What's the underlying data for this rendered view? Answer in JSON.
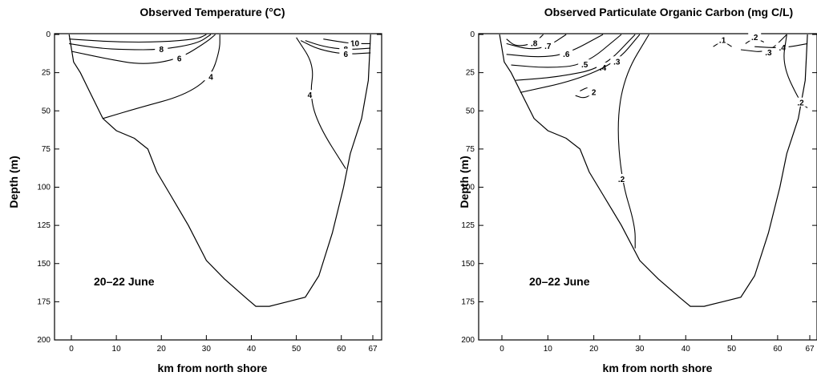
{
  "chart_data": [
    {
      "type": "contour",
      "title": "Observed Temperature (°C)",
      "xlabel": "km from north shore",
      "ylabel": "Depth (m)",
      "xlim": [
        -5,
        70
      ],
      "ylim": [
        200,
        0
      ],
      "x_ticks": [
        0,
        10,
        20,
        30,
        40,
        50,
        60,
        67
      ],
      "y_ticks": [
        0,
        25,
        50,
        75,
        100,
        125,
        150,
        175,
        200
      ],
      "annotation": "20–22 June",
      "basin_outline": [
        [
          -0.5,
          0
        ],
        [
          0.5,
          18
        ],
        [
          2,
          25
        ],
        [
          4,
          37
        ],
        [
          7,
          55
        ],
        [
          10,
          63
        ],
        [
          14,
          68
        ],
        [
          17,
          75
        ],
        [
          19,
          90
        ],
        [
          22,
          105
        ],
        [
          26,
          125
        ],
        [
          30,
          148
        ],
        [
          34,
          160
        ],
        [
          39,
          173
        ],
        [
          41,
          178
        ],
        [
          44,
          178
        ],
        [
          48,
          175
        ],
        [
          52,
          172
        ],
        [
          55,
          158
        ],
        [
          58,
          130
        ],
        [
          60.5,
          100
        ],
        [
          62,
          78
        ],
        [
          64.5,
          55
        ],
        [
          66,
          30
        ],
        [
          66.5,
          0
        ]
      ],
      "isotherms": [
        {
          "label": "10",
          "points": [
            [
              56,
              3
            ],
            [
              60,
              5
            ],
            [
              63,
              6
            ],
            [
              66.5,
              6
            ]
          ]
        },
        {
          "label": "8",
          "points": [
            [
              52,
              4
            ],
            [
              56,
              8
            ],
            [
              61,
              10
            ],
            [
              66.5,
              9
            ]
          ]
        },
        {
          "label": "6",
          "points": [
            [
              51,
              4
            ],
            [
              55,
              10
            ],
            [
              61,
              13
            ],
            [
              66.5,
              12
            ]
          ]
        },
        {
          "label": "4",
          "points": [
            [
              50,
              2
            ],
            [
              54,
              20
            ],
            [
              53,
              40
            ],
            [
              55,
              60
            ],
            [
              61,
              88
            ]
          ]
        },
        {
          "label": "",
          "points": [
            [
              -0.5,
              3
            ],
            [
              10,
              5
            ],
            [
              20,
              5
            ],
            [
              28,
              3
            ],
            [
              30,
              0
            ]
          ]
        },
        {
          "label": "8",
          "points": [
            [
              -0.5,
              6
            ],
            [
              6,
              9
            ],
            [
              12,
              10
            ],
            [
              20,
              10
            ],
            [
              28,
              6
            ],
            [
              31,
              0
            ]
          ]
        },
        {
          "label": "6",
          "points": [
            [
              0,
              11
            ],
            [
              8,
              16
            ],
            [
              16,
              20
            ],
            [
              24,
              16
            ],
            [
              30,
              5
            ],
            [
              32,
              0
            ]
          ]
        },
        {
          "label": "4",
          "points": [
            [
              7,
              55
            ],
            [
              15,
              48
            ],
            [
              25,
              40
            ],
            [
              31,
              28
            ],
            [
              33,
              10
            ],
            [
              33,
              0
            ]
          ]
        }
      ],
      "contour_values": [
        "10",
        "8",
        "6",
        "4"
      ]
    },
    {
      "type": "contour",
      "title": "Observed Particulate Organic Carbon (mg C/L)",
      "xlabel": "km from north shore",
      "ylabel": "Depth (m)",
      "xlim": [
        -5,
        70
      ],
      "ylim": [
        200,
        0
      ],
      "x_ticks": [
        0,
        10,
        20,
        30,
        40,
        50,
        60,
        67
      ],
      "y_ticks": [
        0,
        25,
        50,
        75,
        100,
        125,
        150,
        175,
        200
      ],
      "annotation": "20–22 June",
      "contours": [
        {
          "label": ".8",
          "points": [
            [
              1,
              3
            ],
            [
              3,
              8
            ],
            [
              7,
              6
            ],
            [
              9,
              0
            ]
          ]
        },
        {
          "label": ".7",
          "points": [
            [
              1,
              6
            ],
            [
              6,
              10
            ],
            [
              10,
              8
            ],
            [
              14,
              0
            ]
          ]
        },
        {
          "label": ".6",
          "points": [
            [
              1,
              13
            ],
            [
              8,
              15
            ],
            [
              14,
              13
            ],
            [
              22,
              0
            ]
          ]
        },
        {
          "label": ".5",
          "points": [
            [
              2,
              20
            ],
            [
              10,
              22
            ],
            [
              18,
              20
            ],
            [
              26,
              0
            ]
          ]
        },
        {
          "label": ".4",
          "points": [
            [
              3,
              30
            ],
            [
              12,
              28
            ],
            [
              22,
              22
            ],
            [
              29,
              0
            ]
          ]
        },
        {
          "label": ".3",
          "points": [
            [
              4,
              38
            ],
            [
              16,
              30
            ],
            [
              25,
              18
            ],
            [
              30,
              0
            ]
          ]
        },
        {
          "label": ".2",
          "points": [
            [
              32,
              0
            ],
            [
              27,
              25
            ],
            [
              25,
              55
            ],
            [
              26,
              95
            ],
            [
              29,
              125
            ],
            [
              29,
              140
            ]
          ]
        },
        {
          "label": "2",
          "points": [
            [
              17,
              37
            ],
            [
              19,
              34
            ],
            [
              20,
              38
            ],
            [
              18,
              42
            ],
            [
              16,
              40
            ]
          ]
        },
        {
          "label": ".1",
          "points": [
            [
              46,
              8
            ],
            [
              48,
              4
            ],
            [
              50,
              8
            ]
          ]
        },
        {
          "label": ".2",
          "points": [
            [
              53,
              6
            ],
            [
              55,
              2
            ],
            [
              57,
              5
            ]
          ]
        },
        {
          "label": ".3",
          "points": [
            [
              52,
              10
            ],
            [
              58,
              12
            ],
            [
              62,
              0
            ]
          ]
        },
        {
          "label": ".4",
          "points": [
            [
              55,
              8
            ],
            [
              61,
              9
            ],
            [
              66.5,
              6
            ]
          ]
        },
        {
          "label": ".2",
          "points": [
            [
              62,
              0
            ],
            [
              61,
              20
            ],
            [
              65,
              45
            ],
            [
              66.5,
              48
            ]
          ]
        }
      ],
      "contour_values": [
        ".8",
        ".7",
        ".6",
        ".5",
        ".4",
        ".3",
        ".2",
        ".1"
      ]
    }
  ]
}
